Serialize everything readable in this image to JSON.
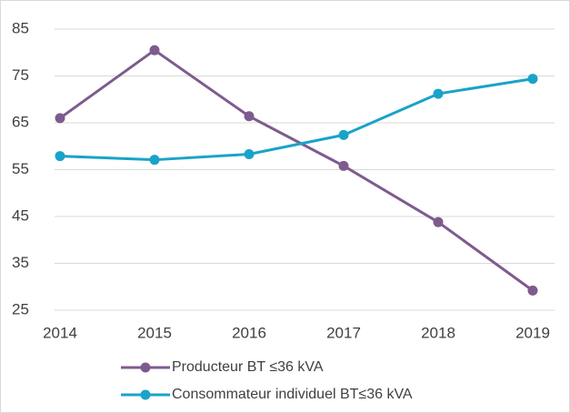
{
  "chart_data": {
    "type": "line",
    "categories": [
      "2014",
      "2015",
      "2016",
      "2017",
      "2018",
      "2019"
    ],
    "series": [
      {
        "name": "Producteur BT ≤36 kVA",
        "color": "#7e5b8e",
        "values": [
          66,
          80.5,
          66.4,
          55.8,
          43.8,
          29.2
        ]
      },
      {
        "name": "Consommateur individuel BT≤36 kVA",
        "color": "#1aa3c8",
        "values": [
          57.9,
          57.1,
          58.3,
          62.4,
          71.2,
          74.4
        ]
      }
    ],
    "ylim": [
      25,
      85
    ],
    "yticks": [
      25,
      35,
      45,
      55,
      65,
      75,
      85
    ],
    "grid": true,
    "legend": "bottom"
  }
}
